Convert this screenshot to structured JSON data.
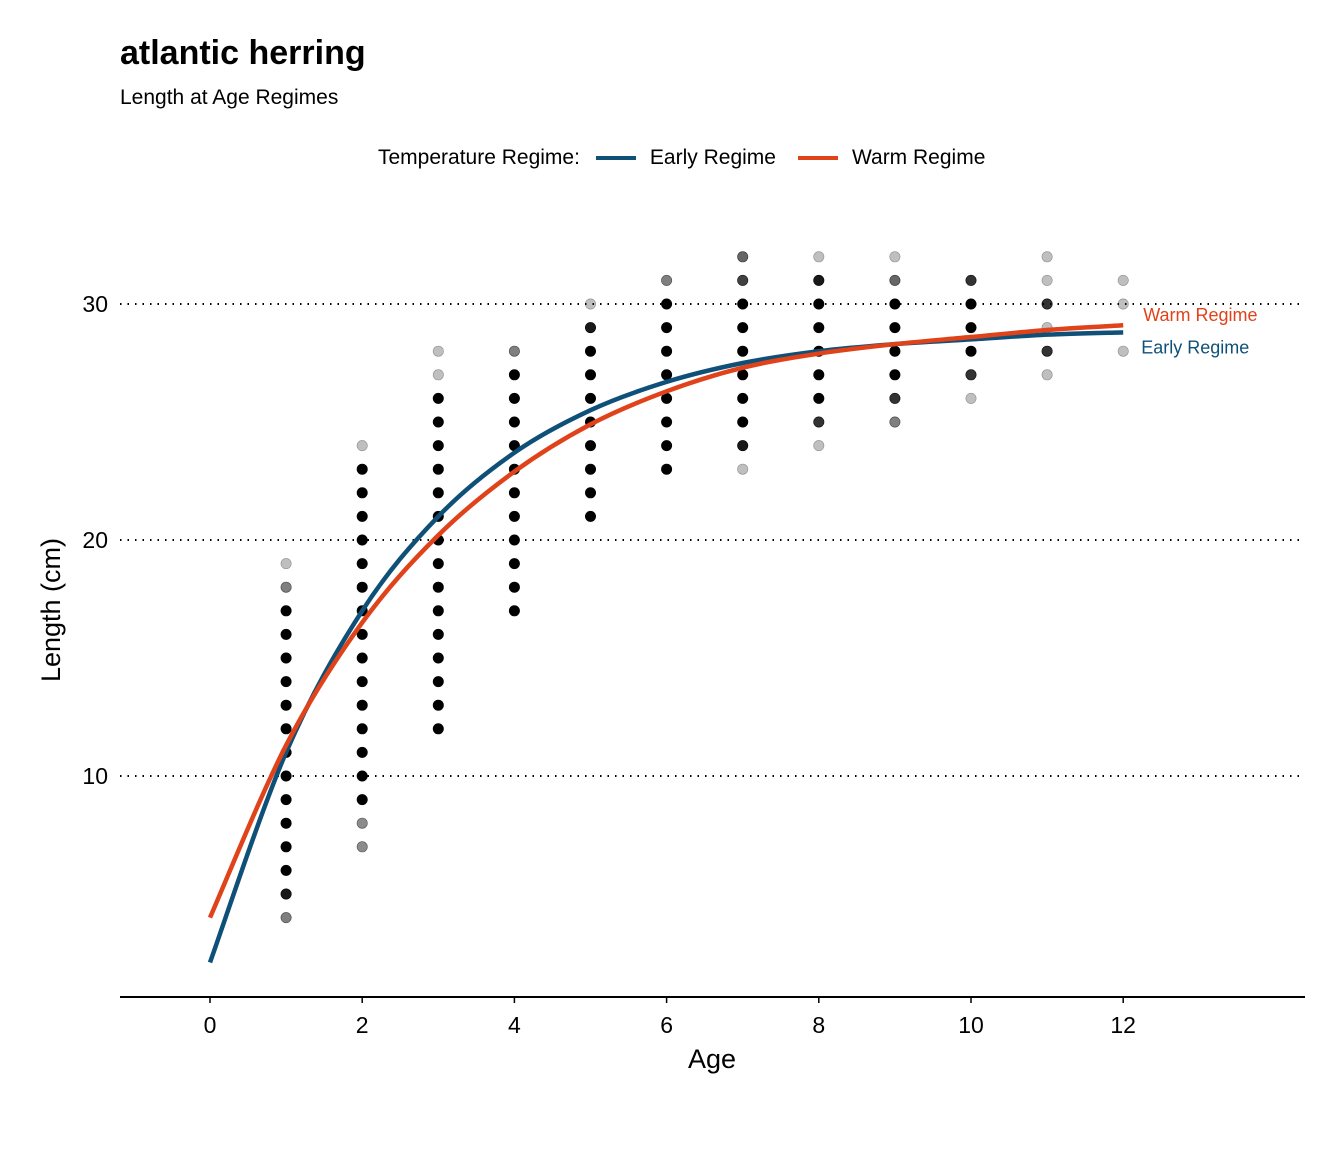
{
  "chart_data": {
    "type": "scatter",
    "title": "atlantic herring",
    "subtitle": "Length at Age Regimes",
    "xlabel": "Age",
    "ylabel": "Length (cm)",
    "xlim": [
      -1.2,
      14.4
    ],
    "ylim": [
      0.6,
      33.8
    ],
    "x_ticks": [
      0,
      2,
      4,
      6,
      8,
      10,
      12
    ],
    "y_ticks": [
      10,
      20,
      30
    ],
    "grid": "horizontal dotted",
    "legend": {
      "title": "Temperature Regime:",
      "position": "top",
      "entries": [
        "Early Regime",
        "Warm Regime"
      ]
    },
    "colors": {
      "Early Regime": "#0f5078",
      "Warm Regime": "#e0421a",
      "points": "#000000"
    },
    "points": [
      {
        "age": 1,
        "lengths": [
          4,
          5,
          6,
          7,
          8,
          9,
          10,
          11,
          12,
          13,
          14,
          15,
          16,
          17,
          18,
          19
        ],
        "opacity": [
          0.5,
          0.9,
          1,
          1,
          1,
          1,
          1,
          1,
          1,
          1,
          1,
          1,
          1,
          1,
          0.5,
          0.25
        ]
      },
      {
        "age": 2,
        "lengths": [
          7,
          8,
          9,
          10,
          11,
          12,
          13,
          14,
          15,
          16,
          17,
          18,
          19,
          20,
          21,
          22,
          23,
          24
        ],
        "opacity": [
          0.45,
          0.45,
          1,
          1,
          1,
          1,
          1,
          1,
          1,
          1,
          1,
          1,
          1,
          1,
          1,
          1,
          1,
          0.25
        ]
      },
      {
        "age": 3,
        "lengths": [
          12,
          13,
          14,
          15,
          16,
          17,
          18,
          19,
          20,
          21,
          22,
          23,
          24,
          25,
          26,
          27,
          28
        ],
        "opacity": [
          1,
          1,
          1,
          1,
          1,
          1,
          1,
          1,
          1,
          1,
          1,
          1,
          1,
          1,
          1,
          0.25,
          0.25
        ]
      },
      {
        "age": 4,
        "lengths": [
          17,
          18,
          19,
          20,
          21,
          22,
          23,
          24,
          25,
          26,
          27,
          28
        ],
        "opacity": [
          1,
          1,
          1,
          1,
          1,
          1,
          1,
          1,
          1,
          1,
          1,
          0.5
        ]
      },
      {
        "age": 5,
        "lengths": [
          21,
          22,
          23,
          24,
          25,
          26,
          27,
          28,
          29,
          30
        ],
        "opacity": [
          1,
          1,
          1,
          1,
          1,
          1,
          1,
          1,
          0.9,
          0.25
        ]
      },
      {
        "age": 6,
        "lengths": [
          23,
          24,
          25,
          26,
          27,
          28,
          29,
          30,
          31
        ],
        "opacity": [
          1,
          1,
          1,
          1,
          1,
          1,
          1,
          1,
          0.5
        ]
      },
      {
        "age": 7,
        "lengths": [
          23,
          24,
          25,
          26,
          27,
          28,
          29,
          30,
          31,
          32
        ],
        "opacity": [
          0.25,
          0.9,
          1,
          1,
          1,
          1,
          1,
          1,
          0.75,
          0.6
        ]
      },
      {
        "age": 8,
        "lengths": [
          24,
          25,
          26,
          27,
          28,
          29,
          30,
          31,
          32
        ],
        "opacity": [
          0.25,
          0.8,
          1,
          1,
          1,
          1,
          1,
          0.9,
          0.25
        ]
      },
      {
        "age": 9,
        "lengths": [
          25,
          26,
          27,
          28,
          29,
          30,
          31,
          32
        ],
        "opacity": [
          0.5,
          0.8,
          1,
          1,
          1,
          1,
          0.6,
          0.25
        ]
      },
      {
        "age": 10,
        "lengths": [
          26,
          27,
          28,
          29,
          30,
          31
        ],
        "opacity": [
          0.25,
          0.8,
          1,
          1,
          1,
          0.8
        ]
      },
      {
        "age": 11,
        "lengths": [
          27,
          28,
          29,
          30,
          31,
          32
        ],
        "opacity": [
          0.25,
          0.8,
          0.25,
          0.8,
          0.25,
          0.25
        ]
      },
      {
        "age": 12,
        "lengths": [
          28,
          30,
          31
        ],
        "opacity": [
          0.25,
          0.25,
          0.25
        ]
      }
    ],
    "series": [
      {
        "name": "Early Regime",
        "x": [
          0,
          1,
          2,
          3,
          4,
          5,
          6,
          7,
          8,
          9,
          10,
          11,
          12
        ],
        "y": [
          2.1,
          11.0,
          17.0,
          21.0,
          23.7,
          25.5,
          26.7,
          27.5,
          28.0,
          28.3,
          28.5,
          28.7,
          28.8
        ]
      },
      {
        "name": "Warm Regime",
        "x": [
          0,
          1,
          2,
          3,
          4,
          5,
          6,
          7,
          8,
          9,
          10,
          11,
          12
        ],
        "y": [
          4.0,
          11.3,
          16.5,
          20.2,
          22.9,
          24.9,
          26.3,
          27.3,
          27.9,
          28.3,
          28.6,
          28.9,
          29.1
        ]
      }
    ]
  }
}
